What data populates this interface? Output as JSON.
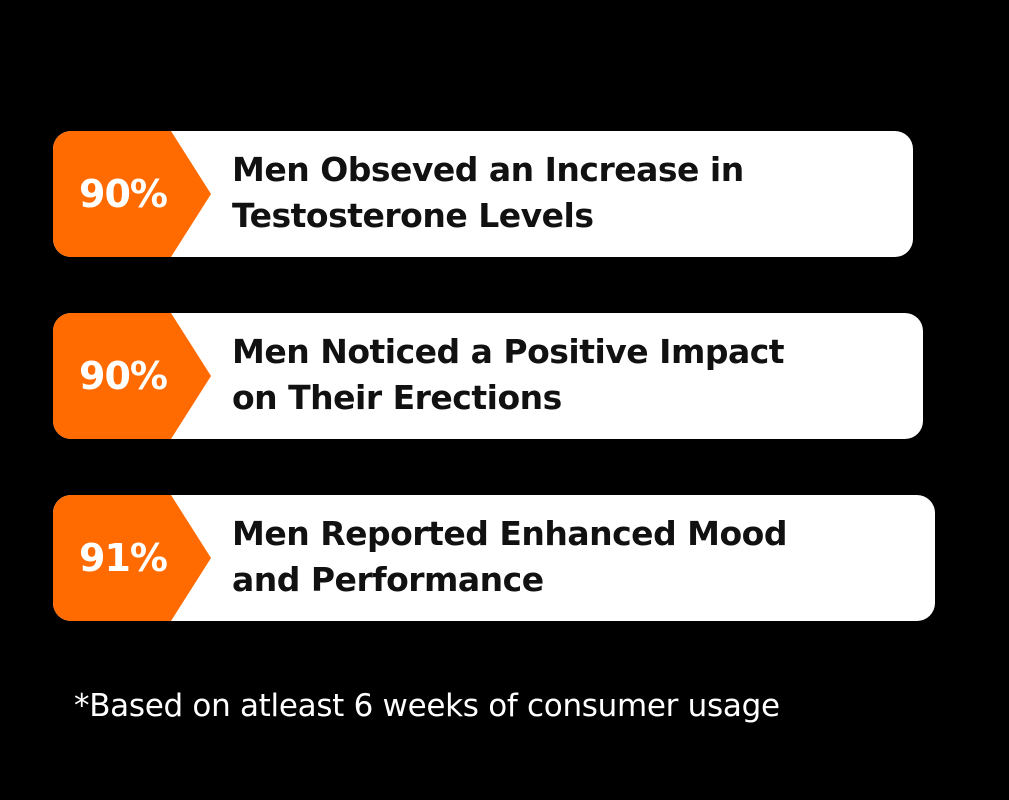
{
  "colors": {
    "background": "#000000",
    "card": "#ffffff",
    "accent": "#ff6b00",
    "text": "#111111",
    "footnote": "#ffffff"
  },
  "stats": [
    {
      "value": "90%",
      "line1": "Men Obseved an Increase in",
      "line2": "Testosterone Levels"
    },
    {
      "value": "90%",
      "line1": "Men Noticed a Positive Impact",
      "line2": "on Their Erections"
    },
    {
      "value": "91%",
      "line1": "Men Reported Enhanced Mood",
      "line2": "and Performance"
    }
  ],
  "footnote": "*Based on atleast 6 weeks of consumer usage"
}
